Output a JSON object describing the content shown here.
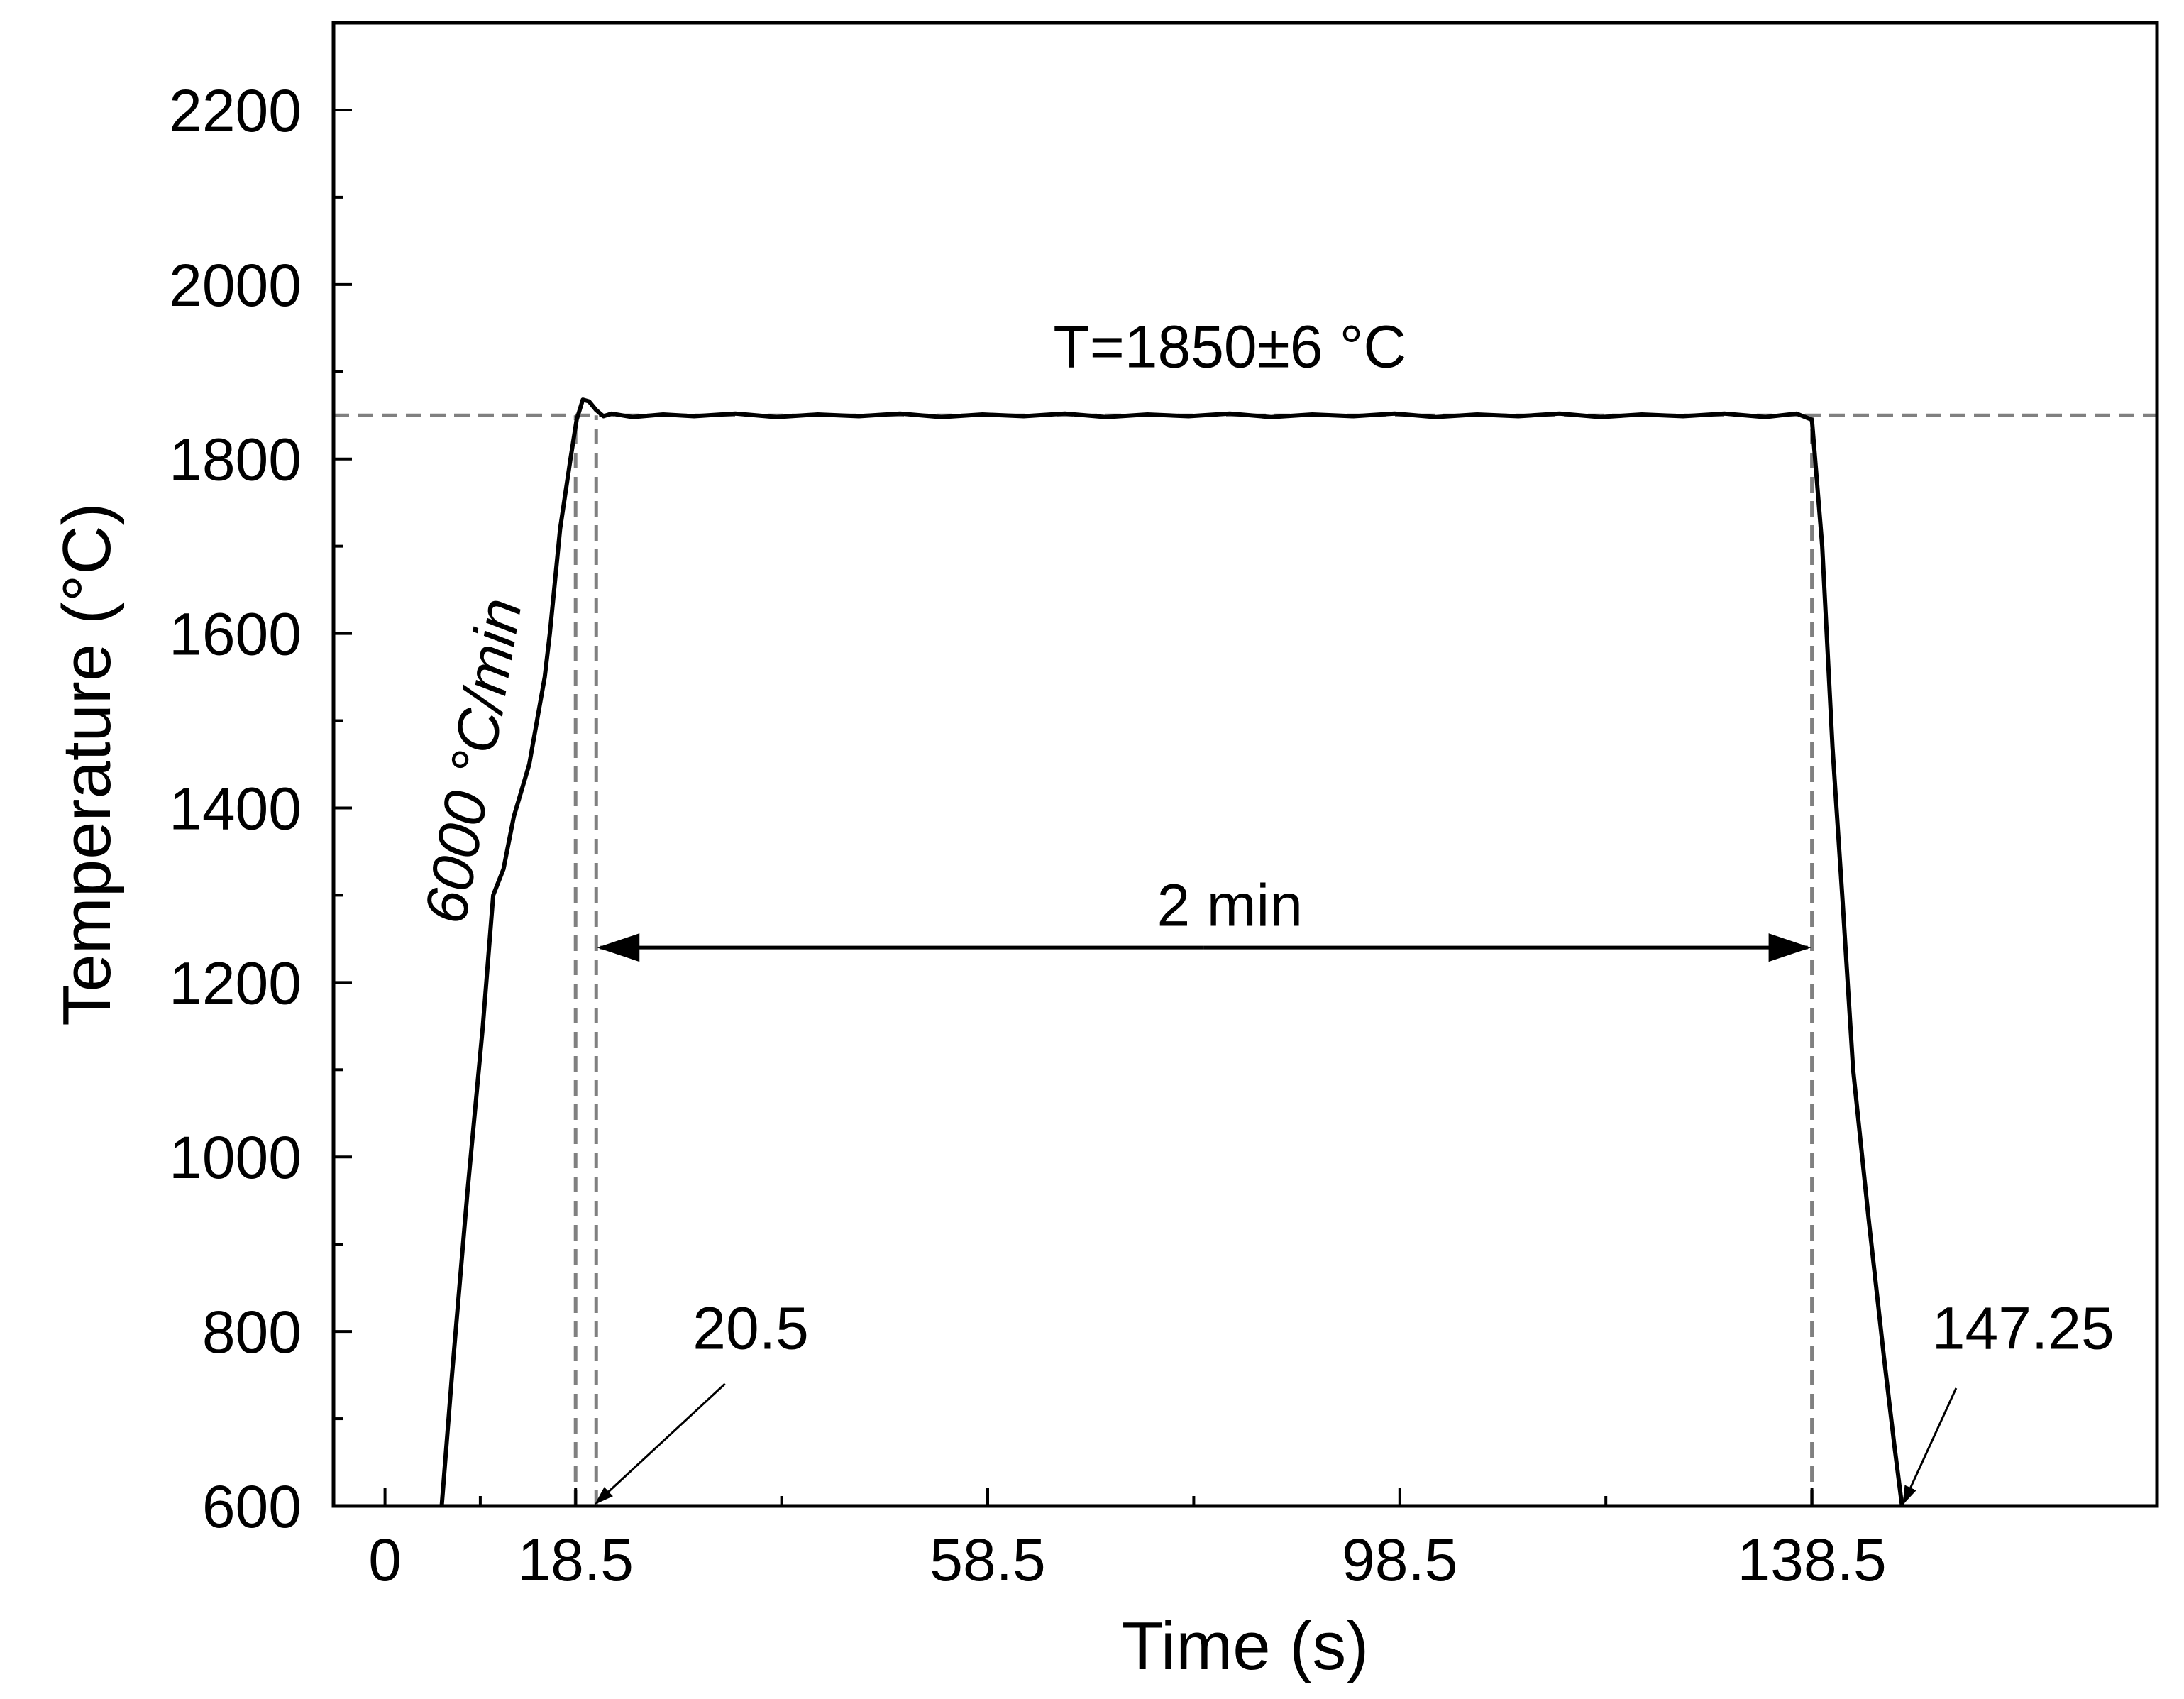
{
  "chart_data": {
    "type": "line",
    "xlabel": "Time (s)",
    "ylabel": "Temperature (°C)",
    "xlim": [
      -5,
      172
    ],
    "ylim": [
      600,
      2300
    ],
    "x_ticks": [
      0,
      18.5,
      58.5,
      98.5,
      138.5
    ],
    "x_tick_labels": [
      "0",
      "18.5",
      "58.5",
      "98.5",
      "138.5"
    ],
    "y_ticks": [
      600,
      800,
      1000,
      1200,
      1400,
      1600,
      1800,
      2000,
      2200
    ],
    "y_tick_labels": [
      "600",
      "800",
      "1000",
      "1200",
      "1400",
      "1600",
      "1800",
      "2000",
      "2200"
    ],
    "grid": false,
    "series": [
      {
        "color": "#000000",
        "style": "solid",
        "points": [
          [
            5.5,
            600
          ],
          [
            6.5,
            750
          ],
          [
            8,
            960
          ],
          [
            9.5,
            1150
          ],
          [
            10.5,
            1300
          ],
          [
            11.5,
            1330
          ],
          [
            12.5,
            1390
          ],
          [
            14,
            1450
          ],
          [
            15.5,
            1550
          ],
          [
            16,
            1600
          ],
          [
            17,
            1720
          ],
          [
            18,
            1800
          ],
          [
            18.6,
            1845
          ],
          [
            19.2,
            1868
          ],
          [
            19.8,
            1866
          ],
          [
            20.5,
            1856
          ],
          [
            21.2,
            1849
          ],
          [
            22,
            1852
          ],
          [
            24,
            1848
          ],
          [
            27,
            1851
          ],
          [
            30,
            1849
          ],
          [
            34,
            1852
          ],
          [
            38,
            1848
          ],
          [
            42,
            1851
          ],
          [
            46,
            1849
          ],
          [
            50,
            1852
          ],
          [
            54,
            1848
          ],
          [
            58,
            1851
          ],
          [
            62,
            1849
          ],
          [
            66,
            1852
          ],
          [
            70,
            1848
          ],
          [
            74,
            1851
          ],
          [
            78,
            1849
          ],
          [
            82,
            1852
          ],
          [
            86,
            1848
          ],
          [
            90,
            1851
          ],
          [
            94,
            1849
          ],
          [
            98,
            1852
          ],
          [
            102,
            1848
          ],
          [
            106,
            1851
          ],
          [
            110,
            1849
          ],
          [
            114,
            1852
          ],
          [
            118,
            1848
          ],
          [
            122,
            1851
          ],
          [
            126,
            1849
          ],
          [
            130,
            1852
          ],
          [
            134,
            1848
          ],
          [
            137,
            1852
          ],
          [
            138.5,
            1845
          ],
          [
            139.5,
            1700
          ],
          [
            140.5,
            1470
          ],
          [
            141.5,
            1290
          ],
          [
            142.5,
            1100
          ],
          [
            144,
            930
          ],
          [
            145.5,
            770
          ],
          [
            146.5,
            670
          ],
          [
            147.25,
            600
          ]
        ]
      }
    ],
    "reference_lines": [
      {
        "orientation": "horizontal",
        "y": 1850,
        "color": "#808080",
        "style": "dashed"
      },
      {
        "orientation": "vertical",
        "x": 18.5,
        "y_to": 1850,
        "color": "#808080",
        "style": "dashed"
      },
      {
        "orientation": "vertical",
        "x": 20.5,
        "y_to": 1850,
        "color": "#808080",
        "style": "dashed"
      },
      {
        "orientation": "vertical",
        "x": 138.5,
        "y_to": 1850,
        "color": "#808080",
        "style": "dashed"
      }
    ],
    "annotations": {
      "temperature": {
        "text": "T=1850±6 °C",
        "x": 82,
        "y": 1905
      },
      "rate": {
        "text": "6000 °C/min",
        "x": 10.5,
        "y": 1450,
        "rotation": -80
      },
      "duration": {
        "text": "2 min",
        "x": 82,
        "y": 1265,
        "arrow_from": 20.5,
        "arrow_to": 138.5,
        "arrow_y": 1240
      },
      "start_time": {
        "text": "20.5",
        "x": 35.5,
        "y": 780,
        "arrow_from": [
          33,
          740
        ],
        "arrow_to": [
          20.5,
          600
        ]
      },
      "end_time": {
        "text": "147.25",
        "x": 159,
        "y": 780,
        "arrow_from": [
          152.5,
          735
        ],
        "arrow_to": [
          147.25,
          600
        ]
      }
    }
  }
}
